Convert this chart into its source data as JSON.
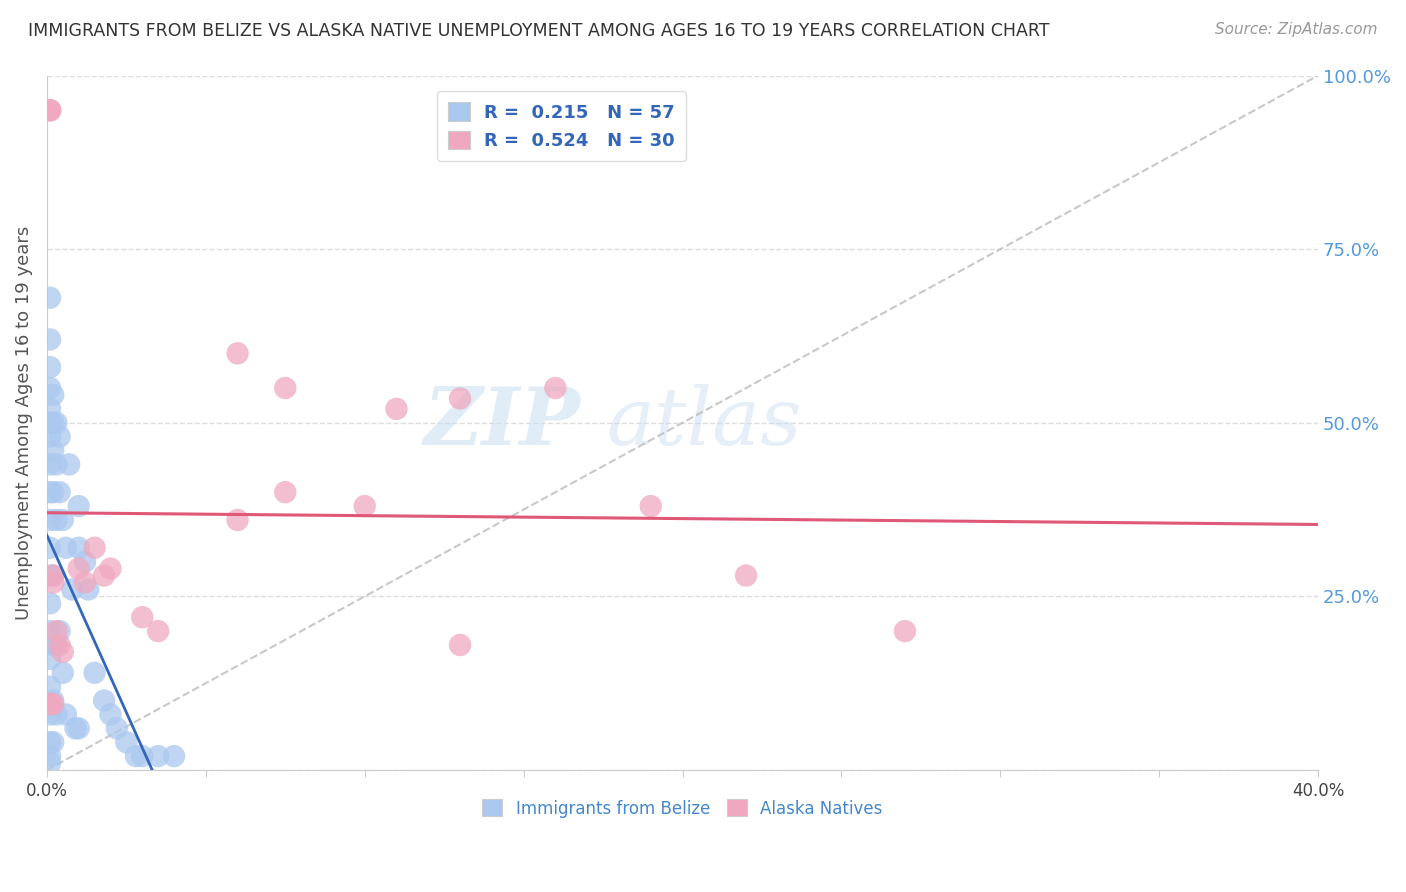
{
  "title": "IMMIGRANTS FROM BELIZE VS ALASKA NATIVE UNEMPLOYMENT AMONG AGES 16 TO 19 YEARS CORRELATION CHART",
  "source": "Source: ZipAtlas.com",
  "ylabel": "Unemployment Among Ages 16 to 19 years",
  "xlim": [
    0.0,
    0.4
  ],
  "ylim": [
    0.0,
    1.0
  ],
  "R_blue": 0.215,
  "N_blue": 57,
  "R_pink": 0.524,
  "N_pink": 30,
  "blue_color": "#aac8ee",
  "pink_color": "#f0a8c0",
  "blue_line_color": "#3366bb",
  "pink_line_color": "#e05878",
  "legend_blue_label": "Immigrants from Belize",
  "legend_pink_label": "Alaska Natives",
  "watermark_zip": "ZIP",
  "watermark_atlas": "atlas",
  "blue_x": [
    0.001,
    0.001,
    0.001,
    0.001,
    0.001,
    0.001,
    0.001,
    0.001,
    0.001,
    0.001,
    0.001,
    0.001,
    0.001,
    0.001,
    0.001,
    0.001,
    0.001,
    0.001,
    0.001,
    0.001,
    0.002,
    0.002,
    0.002,
    0.002,
    0.002,
    0.002,
    0.002,
    0.002,
    0.003,
    0.003,
    0.003,
    0.003,
    0.003,
    0.004,
    0.004,
    0.004,
    0.005,
    0.005,
    0.006,
    0.006,
    0.007,
    0.008,
    0.009,
    0.01,
    0.01,
    0.01,
    0.012,
    0.013,
    0.015,
    0.018,
    0.02,
    0.022,
    0.025,
    0.028,
    0.03,
    0.035,
    0.04
  ],
  "blue_y": [
    0.68,
    0.62,
    0.58,
    0.55,
    0.52,
    0.5,
    0.48,
    0.44,
    0.4,
    0.36,
    0.32,
    0.28,
    0.24,
    0.2,
    0.16,
    0.12,
    0.08,
    0.04,
    0.02,
    0.01,
    0.54,
    0.5,
    0.46,
    0.4,
    0.28,
    0.18,
    0.1,
    0.04,
    0.5,
    0.44,
    0.36,
    0.18,
    0.08,
    0.48,
    0.4,
    0.2,
    0.36,
    0.14,
    0.32,
    0.08,
    0.44,
    0.26,
    0.06,
    0.38,
    0.32,
    0.06,
    0.3,
    0.26,
    0.14,
    0.1,
    0.08,
    0.06,
    0.04,
    0.02,
    0.02,
    0.02,
    0.02
  ],
  "pink_x": [
    0.001,
    0.001,
    0.001,
    0.001,
    0.001,
    0.002,
    0.002,
    0.002,
    0.003,
    0.004,
    0.005,
    0.01,
    0.012,
    0.015,
    0.018,
    0.02,
    0.03,
    0.035,
    0.06,
    0.075,
    0.11,
    0.13,
    0.16,
    0.19,
    0.22,
    0.27,
    0.1,
    0.13,
    0.06,
    0.075
  ],
  "pink_y": [
    0.95,
    0.95,
    0.95,
    0.095,
    0.095,
    0.27,
    0.28,
    0.095,
    0.2,
    0.18,
    0.17,
    0.29,
    0.27,
    0.32,
    0.28,
    0.29,
    0.22,
    0.2,
    0.36,
    0.4,
    0.52,
    0.535,
    0.55,
    0.38,
    0.28,
    0.2,
    0.38,
    0.18,
    0.6,
    0.55
  ]
}
